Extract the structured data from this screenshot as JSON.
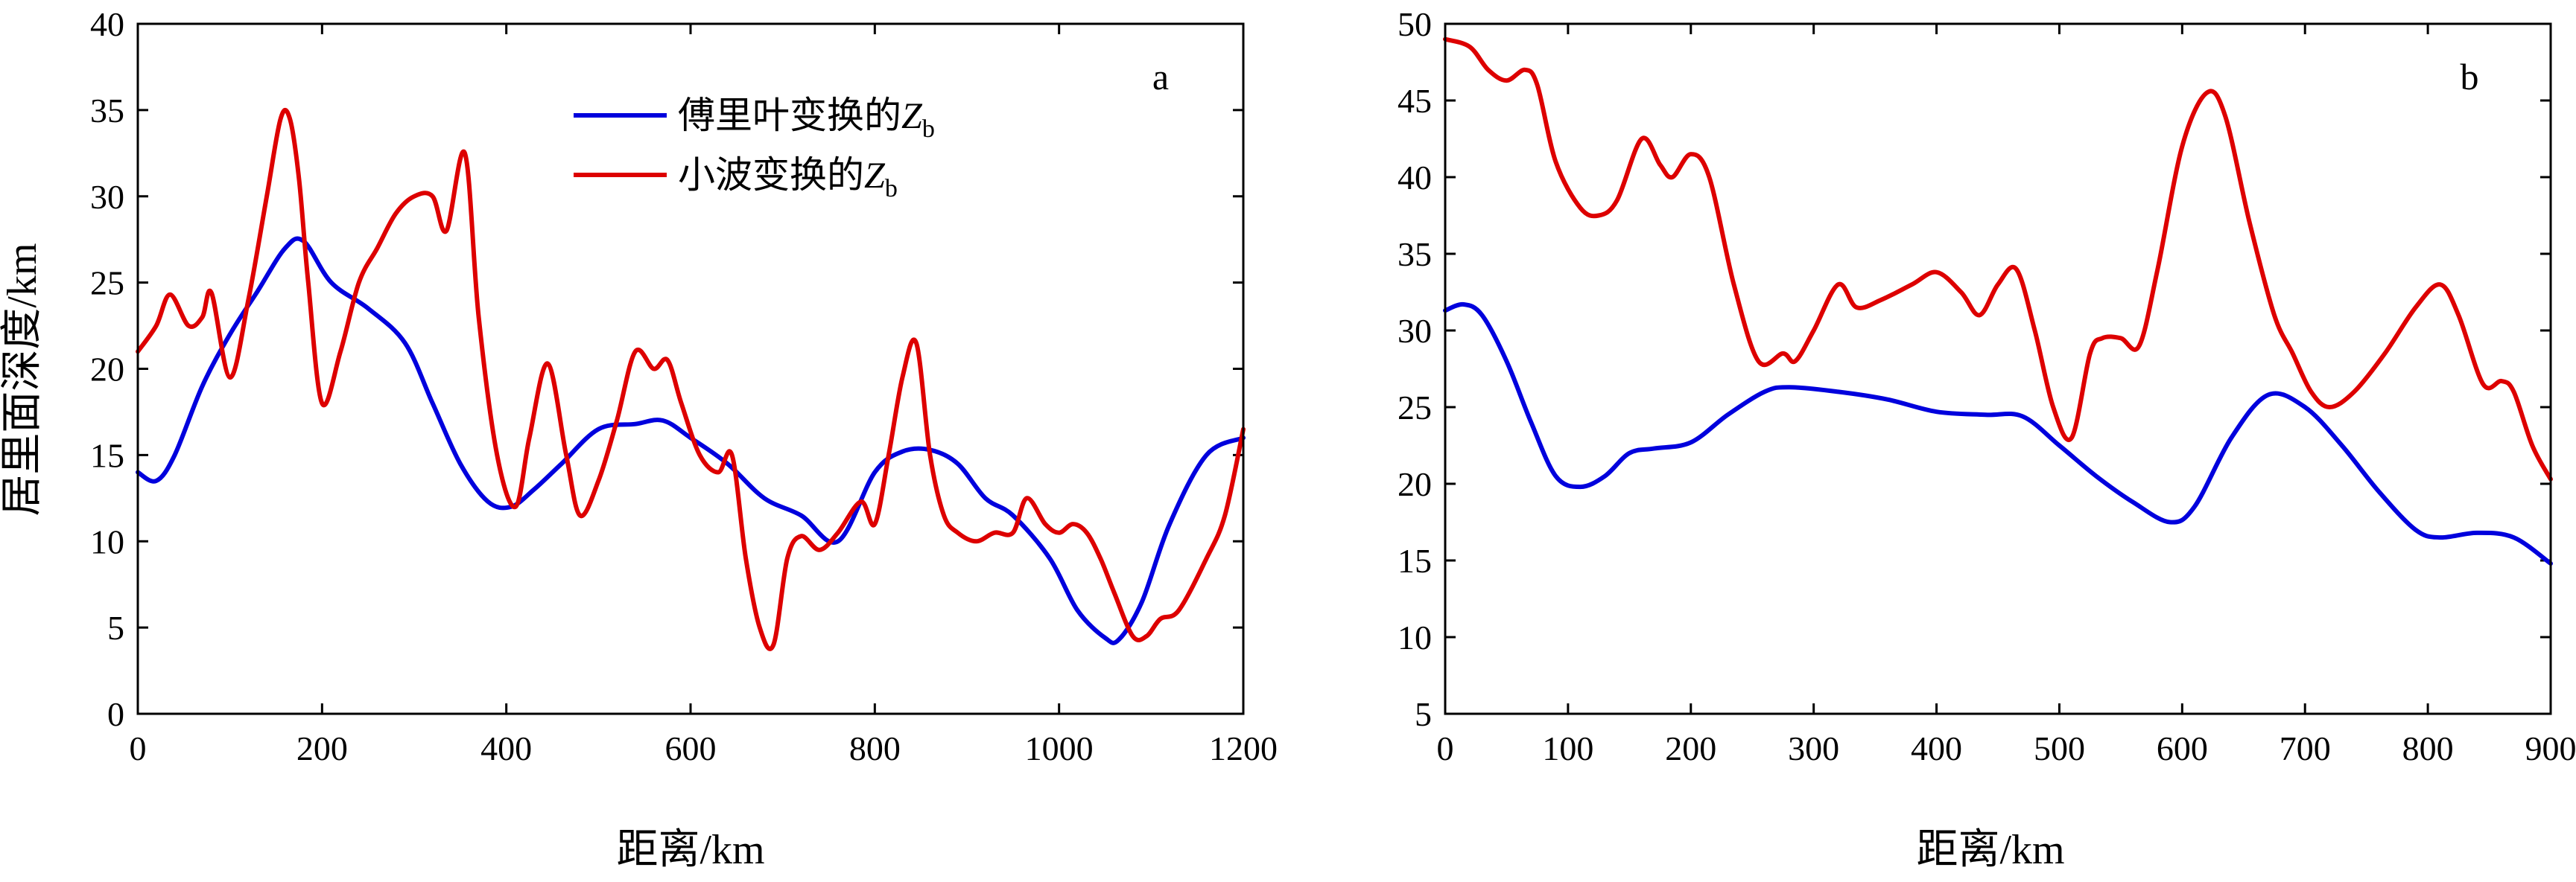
{
  "chart_data": [
    {
      "type": "line",
      "panel": "a",
      "ylabel": "居里面深度/km",
      "xlabel": "距离/km",
      "xlim": [
        0,
        1200
      ],
      "ylim": [
        0,
        40
      ],
      "xticks": [
        0,
        200,
        400,
        600,
        800,
        1000,
        1200
      ],
      "yticks": [
        0,
        5,
        10,
        15,
        20,
        25,
        30,
        35,
        40
      ],
      "grid": false,
      "legend": {
        "placement": "top-center",
        "entries": [
          {
            "text": "傅里叶变换的",
            "sym": "Z",
            "sub": "b"
          },
          {
            "text": "小波变换的",
            "sym": "Z",
            "sub": "b"
          }
        ]
      },
      "colors": [
        "#0000dd",
        "#dd0000"
      ],
      "series": [
        {
          "x": [
            0,
            20,
            40,
            70,
            100,
            130,
            160,
            180,
            210,
            250,
            290,
            320,
            350,
            380,
            405,
            430,
            460,
            500,
            540,
            570,
            600,
            640,
            680,
            720,
            760,
            800,
            830,
            860,
            890,
            920,
            950,
            990,
            1020,
            1050,
            1065,
            1090,
            1120,
            1160,
            1200
          ],
          "y": [
            14,
            13.5,
            15,
            19,
            22,
            24.5,
            27,
            27.4,
            25,
            23.5,
            21.5,
            18,
            14.5,
            12.3,
            12,
            13,
            14.5,
            16.5,
            16.8,
            17,
            16,
            14.5,
            12.5,
            11.5,
            10,
            14,
            15.2,
            15.3,
            14.5,
            12.5,
            11.5,
            9,
            6,
            4.4,
            4.3,
            6.5,
            11,
            15,
            16
          ]
        },
        {
          "x": [
            0,
            20,
            35,
            55,
            70,
            80,
            100,
            120,
            140,
            155,
            165,
            175,
            185,
            200,
            220,
            240,
            260,
            280,
            300,
            320,
            335,
            355,
            370,
            390,
            410,
            425,
            445,
            465,
            480,
            500,
            520,
            540,
            560,
            575,
            590,
            610,
            630,
            645,
            660,
            675,
            690,
            705,
            720,
            740,
            760,
            785,
            800,
            815,
            830,
            845,
            860,
            875,
            890,
            910,
            930,
            950,
            965,
            985,
            1000,
            1015,
            1030,
            1045,
            1060,
            1080,
            1095,
            1110,
            1130,
            1160,
            1180,
            1200
          ],
          "y": [
            21,
            22.5,
            24.3,
            22.5,
            23,
            24.4,
            19.5,
            24,
            30,
            34.5,
            34.5,
            31,
            25,
            18,
            21,
            25,
            27,
            29,
            30,
            30,
            28,
            32.5,
            23,
            15,
            12,
            16,
            20.3,
            15,
            11.5,
            13.5,
            17,
            21,
            20,
            20.5,
            18,
            15,
            14,
            15,
            9,
            5,
            4,
            9,
            10.3,
            9.5,
            10.5,
            12.3,
            11,
            15,
            19.5,
            21.5,
            15,
            11.5,
            10.5,
            10,
            10.5,
            10.5,
            12.5,
            11,
            10.5,
            11,
            10.5,
            9,
            7,
            4.5,
            4.5,
            5.5,
            6,
            9,
            11.5,
            16.5
          ]
        }
      ]
    },
    {
      "type": "line",
      "panel": "b",
      "xlabel": "距离/km",
      "xlim": [
        0,
        900
      ],
      "ylim": [
        5,
        50
      ],
      "xticks": [
        0,
        100,
        200,
        300,
        400,
        500,
        600,
        700,
        800,
        900
      ],
      "yticks": [
        5,
        10,
        15,
        20,
        25,
        30,
        35,
        40,
        45,
        50
      ],
      "grid": false,
      "colors": [
        "#0000dd",
        "#dd0000"
      ],
      "series": [
        {
          "x": [
            0,
            15,
            30,
            50,
            70,
            90,
            110,
            130,
            150,
            170,
            200,
            230,
            260,
            280,
            320,
            360,
            400,
            440,
            470,
            500,
            530,
            560,
            590,
            610,
            640,
            670,
            700,
            730,
            760,
            790,
            810,
            840,
            870,
            900
          ],
          "y": [
            31.3,
            31.7,
            31,
            28,
            24,
            20.5,
            19.8,
            20.5,
            22,
            22.3,
            22.7,
            24.5,
            26,
            26.3,
            26,
            25.5,
            24.7,
            24.5,
            24.4,
            22.5,
            20.5,
            18.8,
            17.5,
            18.5,
            23,
            25.8,
            25,
            22.5,
            19.5,
            17,
            16.5,
            16.8,
            16.5,
            14.8
          ]
        },
        {
          "x": [
            0,
            20,
            35,
            50,
            65,
            75,
            90,
            110,
            125,
            140,
            160,
            175,
            185,
            200,
            215,
            235,
            255,
            275,
            285,
            300,
            320,
            335,
            355,
            380,
            400,
            420,
            435,
            450,
            465,
            480,
            495,
            510,
            525,
            535,
            550,
            565,
            580,
            600,
            620,
            635,
            655,
            675,
            690,
            705,
            720,
            740,
            765,
            790,
            810,
            825,
            845,
            860,
            870,
            885,
            900
          ],
          "y": [
            49,
            48.5,
            47,
            46.3,
            47,
            46,
            41,
            38,
            37.5,
            38.5,
            42.5,
            40.8,
            40,
            41.5,
            40,
            33,
            28,
            28.5,
            28,
            30,
            33,
            31.5,
            32,
            33,
            33.8,
            32.5,
            31,
            33,
            34,
            30,
            25,
            23,
            28.5,
            29.5,
            29.5,
            29,
            34,
            42,
            45.5,
            44,
            37,
            31,
            28.5,
            26,
            25,
            26,
            28.5,
            31.5,
            33,
            31,
            26.5,
            26.7,
            26,
            22.5,
            20.3
          ]
        }
      ]
    }
  ],
  "panels": {
    "a": {
      "tag": "a"
    },
    "b": {
      "tag": "b"
    }
  }
}
